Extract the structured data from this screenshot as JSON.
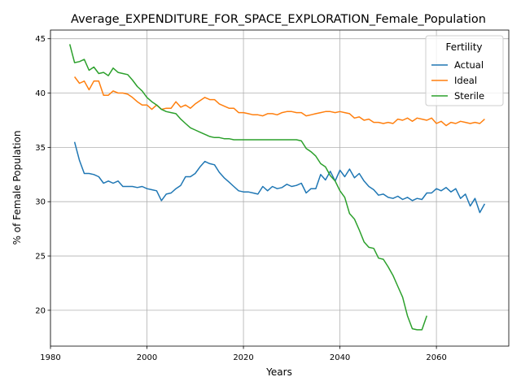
{
  "chart_data": {
    "type": "line",
    "title": "Average_EXPENDITURE_FOR_SPACE_EXPLORATION_Female_Population",
    "xlabel": "Years",
    "ylabel": "% of Female Population",
    "xlim": [
      1980,
      2075
    ],
    "ylim": [
      16.7,
      45.8
    ],
    "xticks": [
      1980,
      2000,
      2020,
      2040,
      2060
    ],
    "yticks": [
      20,
      25,
      30,
      35,
      40,
      45
    ],
    "grid": true,
    "legend": {
      "title": "Fertility",
      "position": "top-right"
    },
    "series": [
      {
        "name": "Actual",
        "color": "#1f77b4",
        "x": [
          1985,
          1986,
          1987,
          1988,
          1989,
          1990,
          1991,
          1992,
          1993,
          1994,
          1995,
          1996,
          1997,
          1998,
          1999,
          2000,
          2001,
          2002,
          2003,
          2004,
          2005,
          2006,
          2007,
          2008,
          2009,
          2010,
          2011,
          2012,
          2013,
          2014,
          2015,
          2016,
          2017,
          2018,
          2019,
          2020,
          2021,
          2022,
          2023,
          2024,
          2025,
          2026,
          2027,
          2028,
          2029,
          2030,
          2031,
          2032,
          2033,
          2034,
          2035,
          2036,
          2037,
          2038,
          2039,
          2040,
          2041,
          2042,
          2043,
          2044,
          2045,
          2046,
          2047,
          2048,
          2049,
          2050,
          2051,
          2052,
          2053,
          2054,
          2055,
          2056,
          2057,
          2058,
          2059,
          2060,
          2061,
          2062,
          2063,
          2064,
          2065,
          2066,
          2067,
          2068,
          2069,
          2070
        ],
        "values": [
          35.5,
          33.8,
          32.6,
          32.6,
          32.5,
          32.3,
          31.7,
          31.9,
          31.7,
          31.9,
          31.4,
          31.4,
          31.4,
          31.3,
          31.4,
          31.2,
          31.1,
          31.0,
          30.1,
          30.7,
          30.8,
          31.2,
          31.5,
          32.3,
          32.3,
          32.6,
          33.2,
          33.7,
          33.5,
          33.4,
          32.7,
          32.2,
          31.8,
          31.4,
          31.0,
          30.9,
          30.9,
          30.8,
          30.7,
          31.4,
          31.0,
          31.4,
          31.2,
          31.3,
          31.6,
          31.4,
          31.5,
          31.7,
          30.8,
          31.2,
          31.2,
          32.5,
          32.0,
          32.8,
          31.9,
          32.9,
          32.3,
          33.0,
          32.2,
          32.6,
          31.9,
          31.4,
          31.1,
          30.6,
          30.7,
          30.4,
          30.3,
          30.5,
          30.2,
          30.4,
          30.1,
          30.3,
          30.2,
          30.8,
          30.8,
          31.2,
          31.0,
          31.3,
          30.9,
          31.2,
          30.3,
          30.7,
          29.6,
          30.3,
          29.0,
          29.8
        ]
      },
      {
        "name": "Ideal",
        "color": "#ff7f0e",
        "x": [
          1985,
          1986,
          1987,
          1988,
          1989,
          1990,
          1991,
          1992,
          1993,
          1994,
          1995,
          1996,
          1997,
          1998,
          1999,
          2000,
          2001,
          2002,
          2003,
          2004,
          2005,
          2006,
          2007,
          2008,
          2009,
          2010,
          2011,
          2012,
          2013,
          2014,
          2015,
          2016,
          2017,
          2018,
          2019,
          2020,
          2021,
          2022,
          2023,
          2024,
          2025,
          2026,
          2027,
          2028,
          2029,
          2030,
          2031,
          2032,
          2033,
          2034,
          2035,
          2036,
          2037,
          2038,
          2039,
          2040,
          2041,
          2042,
          2043,
          2044,
          2045,
          2046,
          2047,
          2048,
          2049,
          2050,
          2051,
          2052,
          2053,
          2054,
          2055,
          2056,
          2057,
          2058,
          2059,
          2060,
          2061,
          2062,
          2063,
          2064,
          2065,
          2066,
          2067,
          2068,
          2069,
          2070
        ],
        "values": [
          41.5,
          40.9,
          41.1,
          40.3,
          41.1,
          41.1,
          39.8,
          39.8,
          40.2,
          40.0,
          40.0,
          39.9,
          39.6,
          39.2,
          38.9,
          38.9,
          38.5,
          38.9,
          38.5,
          38.6,
          38.6,
          39.2,
          38.7,
          38.9,
          38.6,
          39.0,
          39.3,
          39.6,
          39.4,
          39.4,
          39.0,
          38.8,
          38.6,
          38.6,
          38.2,
          38.2,
          38.1,
          38.0,
          38.0,
          37.9,
          38.1,
          38.1,
          38.0,
          38.2,
          38.3,
          38.3,
          38.2,
          38.2,
          37.9,
          38.0,
          38.1,
          38.2,
          38.3,
          38.3,
          38.2,
          38.3,
          38.2,
          38.1,
          37.7,
          37.8,
          37.5,
          37.6,
          37.3,
          37.3,
          37.2,
          37.3,
          37.2,
          37.6,
          37.5,
          37.7,
          37.4,
          37.7,
          37.6,
          37.5,
          37.7,
          37.2,
          37.4,
          37.0,
          37.3,
          37.2,
          37.4,
          37.3,
          37.2,
          37.3,
          37.2,
          37.6
        ]
      },
      {
        "name": "Sterile",
        "color": "#2ca02c",
        "x": [
          1984,
          1985,
          1986,
          1987,
          1988,
          1989,
          1990,
          1991,
          1992,
          1993,
          1994,
          1995,
          1996,
          1997,
          1998,
          1999,
          2000,
          2001,
          2002,
          2003,
          2004,
          2005,
          2006,
          2007,
          2008,
          2009,
          2010,
          2011,
          2012,
          2013,
          2014,
          2015,
          2016,
          2017,
          2018,
          2019,
          2020,
          2021,
          2022,
          2023,
          2024,
          2025,
          2026,
          2027,
          2028,
          2029,
          2030,
          2031,
          2032,
          2033,
          2034,
          2035,
          2036,
          2037,
          2038,
          2039,
          2040,
          2041,
          2042,
          2043,
          2044,
          2045,
          2046,
          2047,
          2048,
          2049,
          2050,
          2051,
          2052,
          2053,
          2054,
          2055,
          2056,
          2057,
          2058
        ],
        "values": [
          44.5,
          42.8,
          42.9,
          43.1,
          42.1,
          42.4,
          41.8,
          41.9,
          41.6,
          42.3,
          41.9,
          41.8,
          41.7,
          41.2,
          40.6,
          40.2,
          39.6,
          39.2,
          38.9,
          38.5,
          38.3,
          38.2,
          38.1,
          37.6,
          37.2,
          36.8,
          36.6,
          36.4,
          36.2,
          36.0,
          35.9,
          35.9,
          35.8,
          35.8,
          35.7,
          35.7,
          35.7,
          35.7,
          35.7,
          35.7,
          35.7,
          35.7,
          35.7,
          35.7,
          35.7,
          35.7,
          35.7,
          35.7,
          35.6,
          34.9,
          34.6,
          34.2,
          33.5,
          33.2,
          32.4,
          31.9,
          31.0,
          30.4,
          28.9,
          28.4,
          27.4,
          26.3,
          25.8,
          25.7,
          24.8,
          24.7,
          24.0,
          23.2,
          22.2,
          21.2,
          19.5,
          18.3,
          18.2,
          18.2,
          19.5
        ]
      }
    ]
  }
}
